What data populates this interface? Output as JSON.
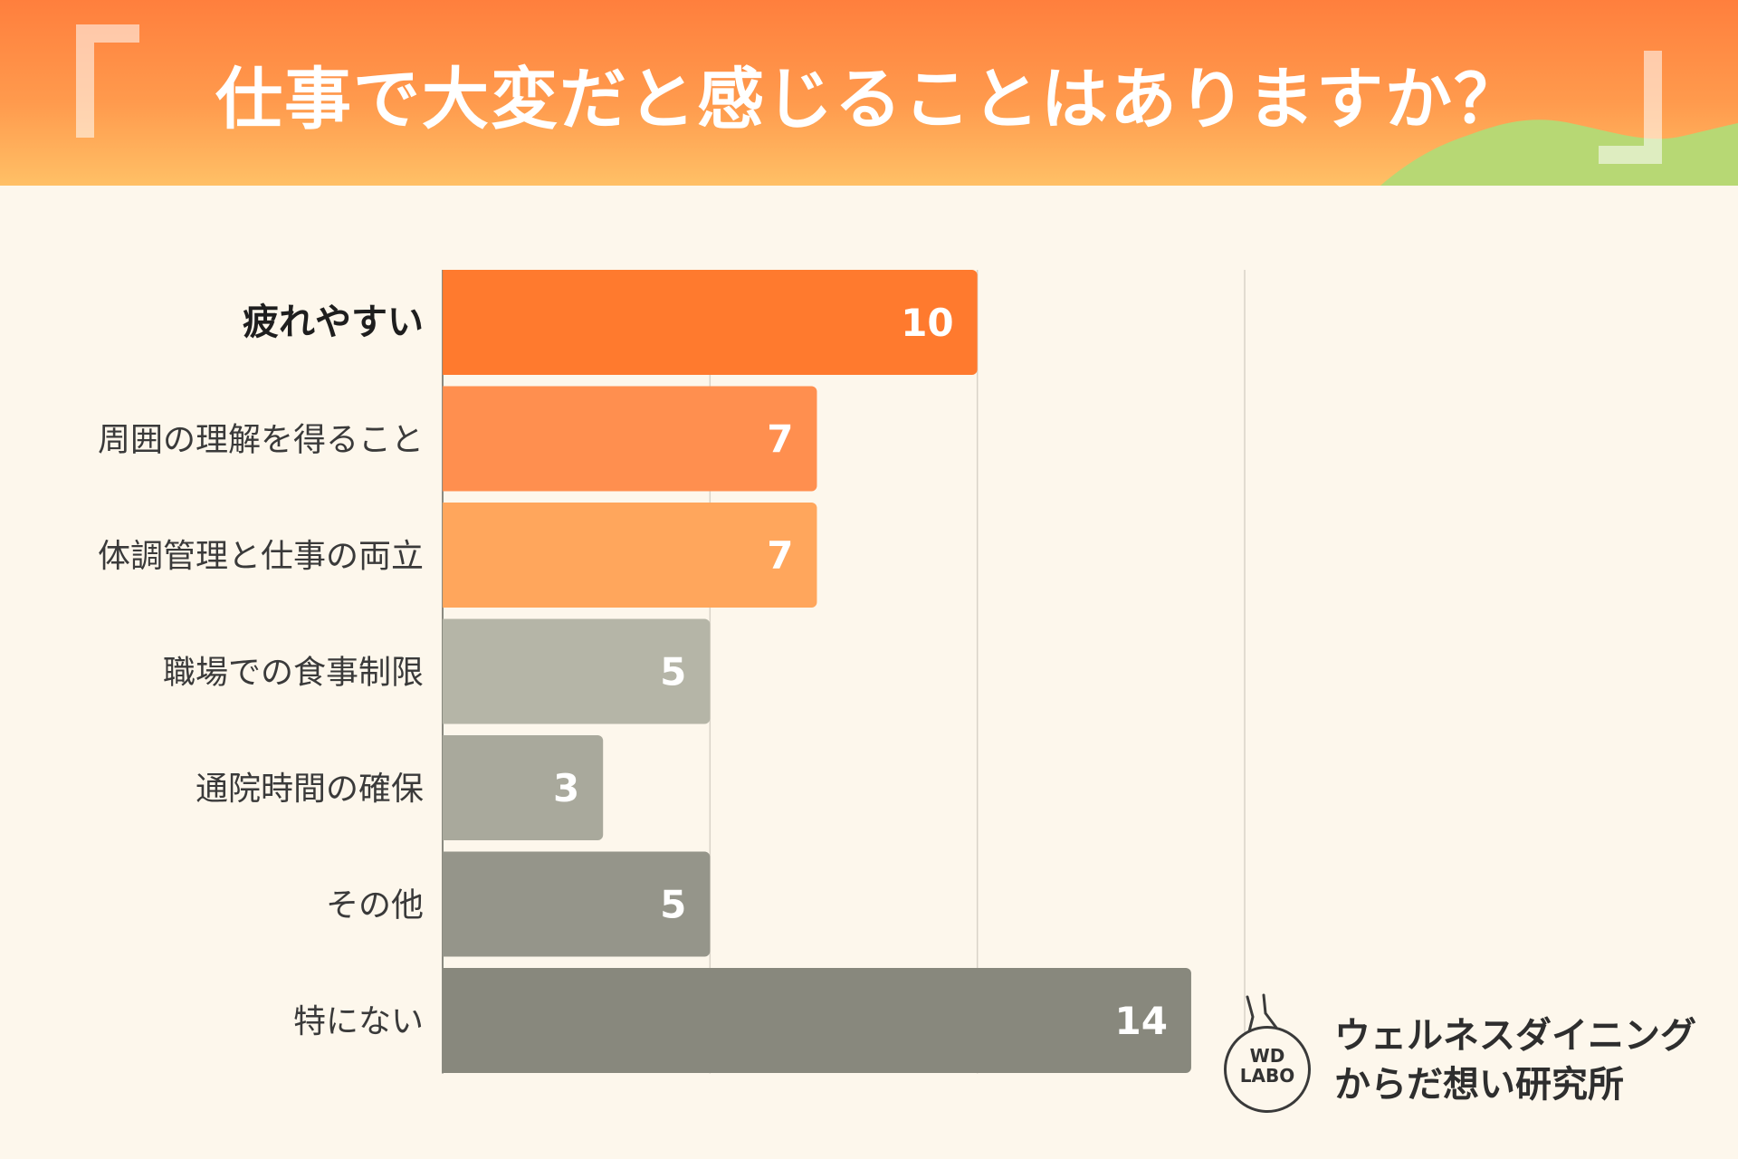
{
  "title": "仕事で大変だと感じることはありますか？",
  "colors": {
    "header_top": "#ff7f3d",
    "header_bottom": "#ffc066",
    "background": "#fdf7ec",
    "hill": "#b7d874",
    "grid": "#d9d3c8"
  },
  "chart_data": {
    "type": "bar",
    "orientation": "horizontal",
    "categories": [
      "疲れやすい",
      "周囲の理解を得ること",
      "体調管理と仕事の両立",
      "職場での食事制限",
      "通院時間の確保",
      "その他",
      "特にない"
    ],
    "values": [
      10,
      7,
      7,
      5,
      3,
      5,
      14
    ],
    "bar_colors": [
      "#ff7a2e",
      "#ff8f4f",
      "#ffa65c",
      "#b5b5a7",
      "#a9a99c",
      "#95958a",
      "#88887d"
    ],
    "highlight_index": 0,
    "xlim": [
      0,
      15
    ],
    "gridlines": [
      0,
      5,
      10,
      15
    ],
    "grid": true,
    "title": "仕事で大変だと感じることはありますか？",
    "xlabel": "",
    "ylabel": ""
  },
  "logo": {
    "badge_top": "WD",
    "badge_bottom": "LABO",
    "name_line1": "ウェルネスダイニング",
    "name_line2": "からだ想い研究所"
  }
}
